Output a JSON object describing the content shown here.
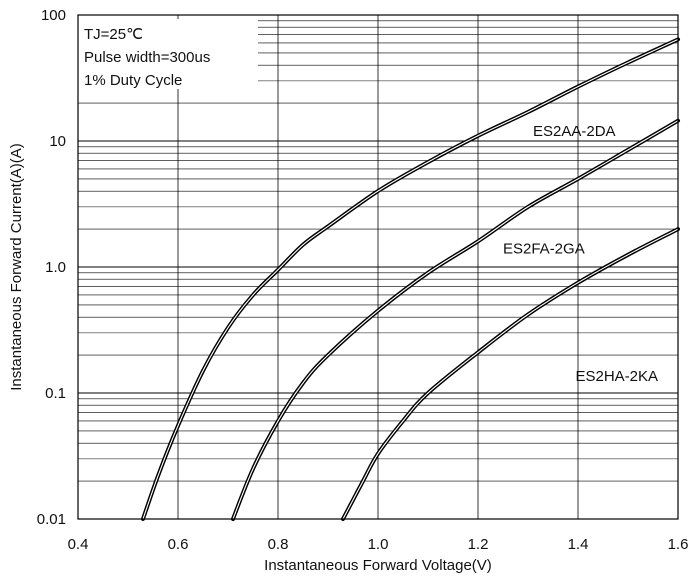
{
  "chart_data": {
    "type": "line",
    "title": "",
    "xlabel": "Instantaneous Forward Voltage(V)",
    "ylabel": "Instantaneous Forward Current(A)(A)",
    "xlim": [
      0.4,
      1.6
    ],
    "ylim": [
      0.01,
      100
    ],
    "yscale": "log",
    "grid": true,
    "x_ticks": [
      0.4,
      0.6,
      0.8,
      1.0,
      1.2,
      1.4,
      1.6
    ],
    "x_tick_labels": [
      "0.4",
      "0.6",
      "0.8",
      "1.0",
      "1.2",
      "1.4",
      "1.6"
    ],
    "y_ticks": [
      0.01,
      0.1,
      1,
      10,
      100
    ],
    "y_tick_labels": [
      "0.01",
      "0.1",
      "1.0",
      "10",
      "100"
    ],
    "annotations": [
      "TJ=25℃",
      "Pulse width=300us",
      "1% Duty Cycle"
    ],
    "line_color": "#000000",
    "grid_color": "#000000",
    "series": [
      {
        "name": "ES2AA-2DA",
        "x": [
          0.53,
          0.56,
          0.6,
          0.65,
          0.7,
          0.75,
          0.8,
          0.85,
          0.9,
          1.0,
          1.1,
          1.2,
          1.3,
          1.4,
          1.5,
          1.6
        ],
        "y": [
          0.01,
          0.022,
          0.055,
          0.15,
          0.33,
          0.6,
          0.95,
          1.5,
          2.1,
          4.0,
          6.8,
          11,
          17,
          27,
          42,
          64
        ]
      },
      {
        "name": "ES2FA-2GA",
        "x": [
          0.71,
          0.75,
          0.8,
          0.85,
          0.9,
          1.0,
          1.1,
          1.2,
          1.3,
          1.4,
          1.5,
          1.6
        ],
        "y": [
          0.01,
          0.025,
          0.06,
          0.12,
          0.2,
          0.45,
          0.9,
          1.6,
          3.0,
          5.0,
          8.5,
          14.5
        ]
      },
      {
        "name": "ES2HA-2KA",
        "x": [
          0.93,
          0.97,
          1.0,
          1.05,
          1.1,
          1.2,
          1.3,
          1.4,
          1.5,
          1.6
        ],
        "y": [
          0.01,
          0.02,
          0.033,
          0.06,
          0.1,
          0.21,
          0.42,
          0.75,
          1.25,
          2.0
        ]
      }
    ]
  }
}
